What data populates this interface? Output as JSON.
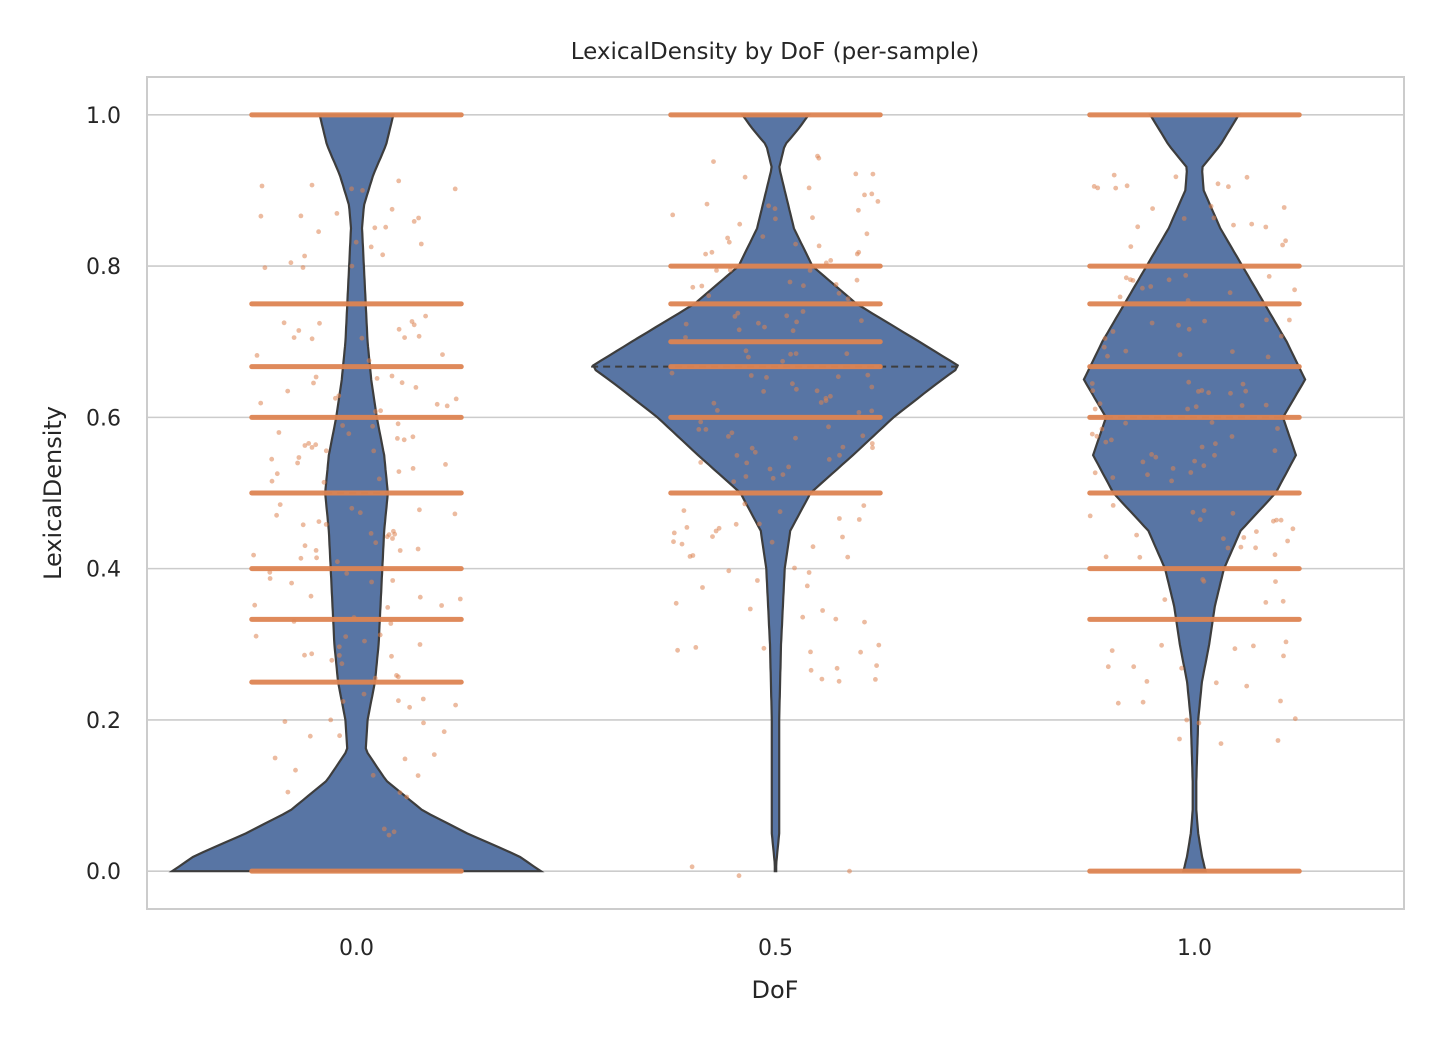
{
  "chart_data": {
    "type": "violin",
    "title": "LexicalDensity by DoF (per-sample)",
    "xlabel": "DoF",
    "ylabel": "LexicalDensity",
    "categories": [
      "0.0",
      "0.5",
      "1.0"
    ],
    "ylim": [
      -0.05,
      1.05
    ],
    "yticks": [
      0.0,
      0.2,
      0.4,
      0.6,
      0.8,
      1.0
    ],
    "ytick_labels": [
      "0.0",
      "0.2",
      "0.4",
      "0.6",
      "0.8",
      "1.0"
    ],
    "grid": "horizontal",
    "colors": {
      "violin": "#5875a4",
      "violin_edge": "#3d3d3d",
      "points": "#dd8452",
      "grid": "#cccccc",
      "spine": "#cccccc"
    },
    "violins": [
      {
        "category": "0.0",
        "median": 0.5,
        "density": [
          [
            0.0,
            1.0
          ],
          [
            0.02,
            0.88
          ],
          [
            0.05,
            0.6
          ],
          [
            0.08,
            0.36
          ],
          [
            0.12,
            0.16
          ],
          [
            0.16,
            0.05
          ],
          [
            0.2,
            0.06
          ],
          [
            0.25,
            0.1
          ],
          [
            0.3,
            0.12
          ],
          [
            0.35,
            0.13
          ],
          [
            0.4,
            0.14
          ],
          [
            0.45,
            0.15
          ],
          [
            0.5,
            0.17
          ],
          [
            0.55,
            0.15
          ],
          [
            0.6,
            0.11
          ],
          [
            0.65,
            0.08
          ],
          [
            0.7,
            0.06
          ],
          [
            0.75,
            0.05
          ],
          [
            0.8,
            0.04
          ],
          [
            0.85,
            0.03
          ],
          [
            0.88,
            0.04
          ],
          [
            0.92,
            0.09
          ],
          [
            0.96,
            0.16
          ],
          [
            1.0,
            0.2
          ]
        ]
      },
      {
        "category": "0.5",
        "median": 0.667,
        "density": [
          [
            0.0,
            0.0
          ],
          [
            0.05,
            0.02
          ],
          [
            0.1,
            0.02
          ],
          [
            0.2,
            0.02
          ],
          [
            0.3,
            0.03
          ],
          [
            0.35,
            0.04
          ],
          [
            0.4,
            0.05
          ],
          [
            0.45,
            0.08
          ],
          [
            0.5,
            0.19
          ],
          [
            0.55,
            0.42
          ],
          [
            0.6,
            0.64
          ],
          [
            0.64,
            0.85
          ],
          [
            0.667,
            1.0
          ],
          [
            0.7,
            0.78
          ],
          [
            0.75,
            0.44
          ],
          [
            0.8,
            0.2
          ],
          [
            0.85,
            0.1
          ],
          [
            0.9,
            0.05
          ],
          [
            0.93,
            0.02
          ],
          [
            0.96,
            0.05
          ],
          [
            0.98,
            0.12
          ],
          [
            1.0,
            0.18
          ]
        ]
      },
      {
        "category": "1.0",
        "median": 0.6,
        "density": [
          [
            0.0,
            0.06
          ],
          [
            0.02,
            0.04
          ],
          [
            0.05,
            0.02
          ],
          [
            0.08,
            0.01
          ],
          [
            0.12,
            0.01
          ],
          [
            0.2,
            0.02
          ],
          [
            0.25,
            0.04
          ],
          [
            0.3,
            0.08
          ],
          [
            0.35,
            0.11
          ],
          [
            0.4,
            0.16
          ],
          [
            0.45,
            0.25
          ],
          [
            0.5,
            0.44
          ],
          [
            0.55,
            0.55
          ],
          [
            0.6,
            0.48
          ],
          [
            0.65,
            0.6
          ],
          [
            0.7,
            0.5
          ],
          [
            0.75,
            0.38
          ],
          [
            0.8,
            0.26
          ],
          [
            0.85,
            0.14
          ],
          [
            0.9,
            0.05
          ],
          [
            0.93,
            0.04
          ],
          [
            0.96,
            0.14
          ],
          [
            1.0,
            0.24
          ]
        ]
      }
    ],
    "strip_lines": [
      {
        "category": "0.0",
        "values": [
          0.0,
          0.25,
          0.333,
          0.4,
          0.5,
          0.6,
          0.667,
          0.75,
          1.0
        ]
      },
      {
        "category": "0.5",
        "values": [
          0.5,
          0.6,
          0.667,
          0.7,
          0.75,
          0.8,
          1.0
        ]
      },
      {
        "category": "1.0",
        "values": [
          0.0,
          0.333,
          0.4,
          0.5,
          0.6,
          0.667,
          0.75,
          0.8,
          1.0
        ]
      }
    ],
    "points": [
      {
        "category": "0.0",
        "values": [
          0.05,
          0.1,
          0.13,
          0.15,
          0.18,
          0.2,
          0.22,
          0.23,
          0.26,
          0.28,
          0.29,
          0.3,
          0.31,
          0.33,
          0.35,
          0.36,
          0.38,
          0.39,
          0.41,
          0.42,
          0.43,
          0.44,
          0.45,
          0.46,
          0.47,
          0.48,
          0.52,
          0.53,
          0.54,
          0.55,
          0.56,
          0.57,
          0.58,
          0.59,
          0.61,
          0.62,
          0.63,
          0.64,
          0.65,
          0.68,
          0.7,
          0.71,
          0.72,
          0.73,
          0.8,
          0.81,
          0.83,
          0.85,
          0.86,
          0.87,
          0.9,
          0.91
        ]
      },
      {
        "category": "0.5",
        "values": [
          0.0,
          0.25,
          0.27,
          0.29,
          0.3,
          0.33,
          0.35,
          0.38,
          0.4,
          0.42,
          0.43,
          0.44,
          0.45,
          0.46,
          0.47,
          0.48,
          0.52,
          0.53,
          0.54,
          0.55,
          0.56,
          0.57,
          0.58,
          0.59,
          0.61,
          0.62,
          0.63,
          0.64,
          0.65,
          0.66,
          0.68,
          0.69,
          0.71,
          0.72,
          0.73,
          0.74,
          0.76,
          0.77,
          0.78,
          0.79,
          0.81,
          0.82,
          0.83,
          0.84,
          0.86,
          0.87,
          0.88,
          0.9,
          0.92,
          0.94
        ]
      },
      {
        "category": "1.0",
        "values": [
          0.17,
          0.2,
          0.22,
          0.25,
          0.27,
          0.29,
          0.3,
          0.36,
          0.38,
          0.42,
          0.43,
          0.44,
          0.45,
          0.46,
          0.47,
          0.48,
          0.52,
          0.53,
          0.54,
          0.55,
          0.56,
          0.57,
          0.58,
          0.59,
          0.61,
          0.62,
          0.63,
          0.64,
          0.65,
          0.68,
          0.69,
          0.71,
          0.72,
          0.73,
          0.76,
          0.77,
          0.78,
          0.79,
          0.83,
          0.85,
          0.86,
          0.88,
          0.9,
          0.91,
          0.92
        ]
      }
    ]
  }
}
